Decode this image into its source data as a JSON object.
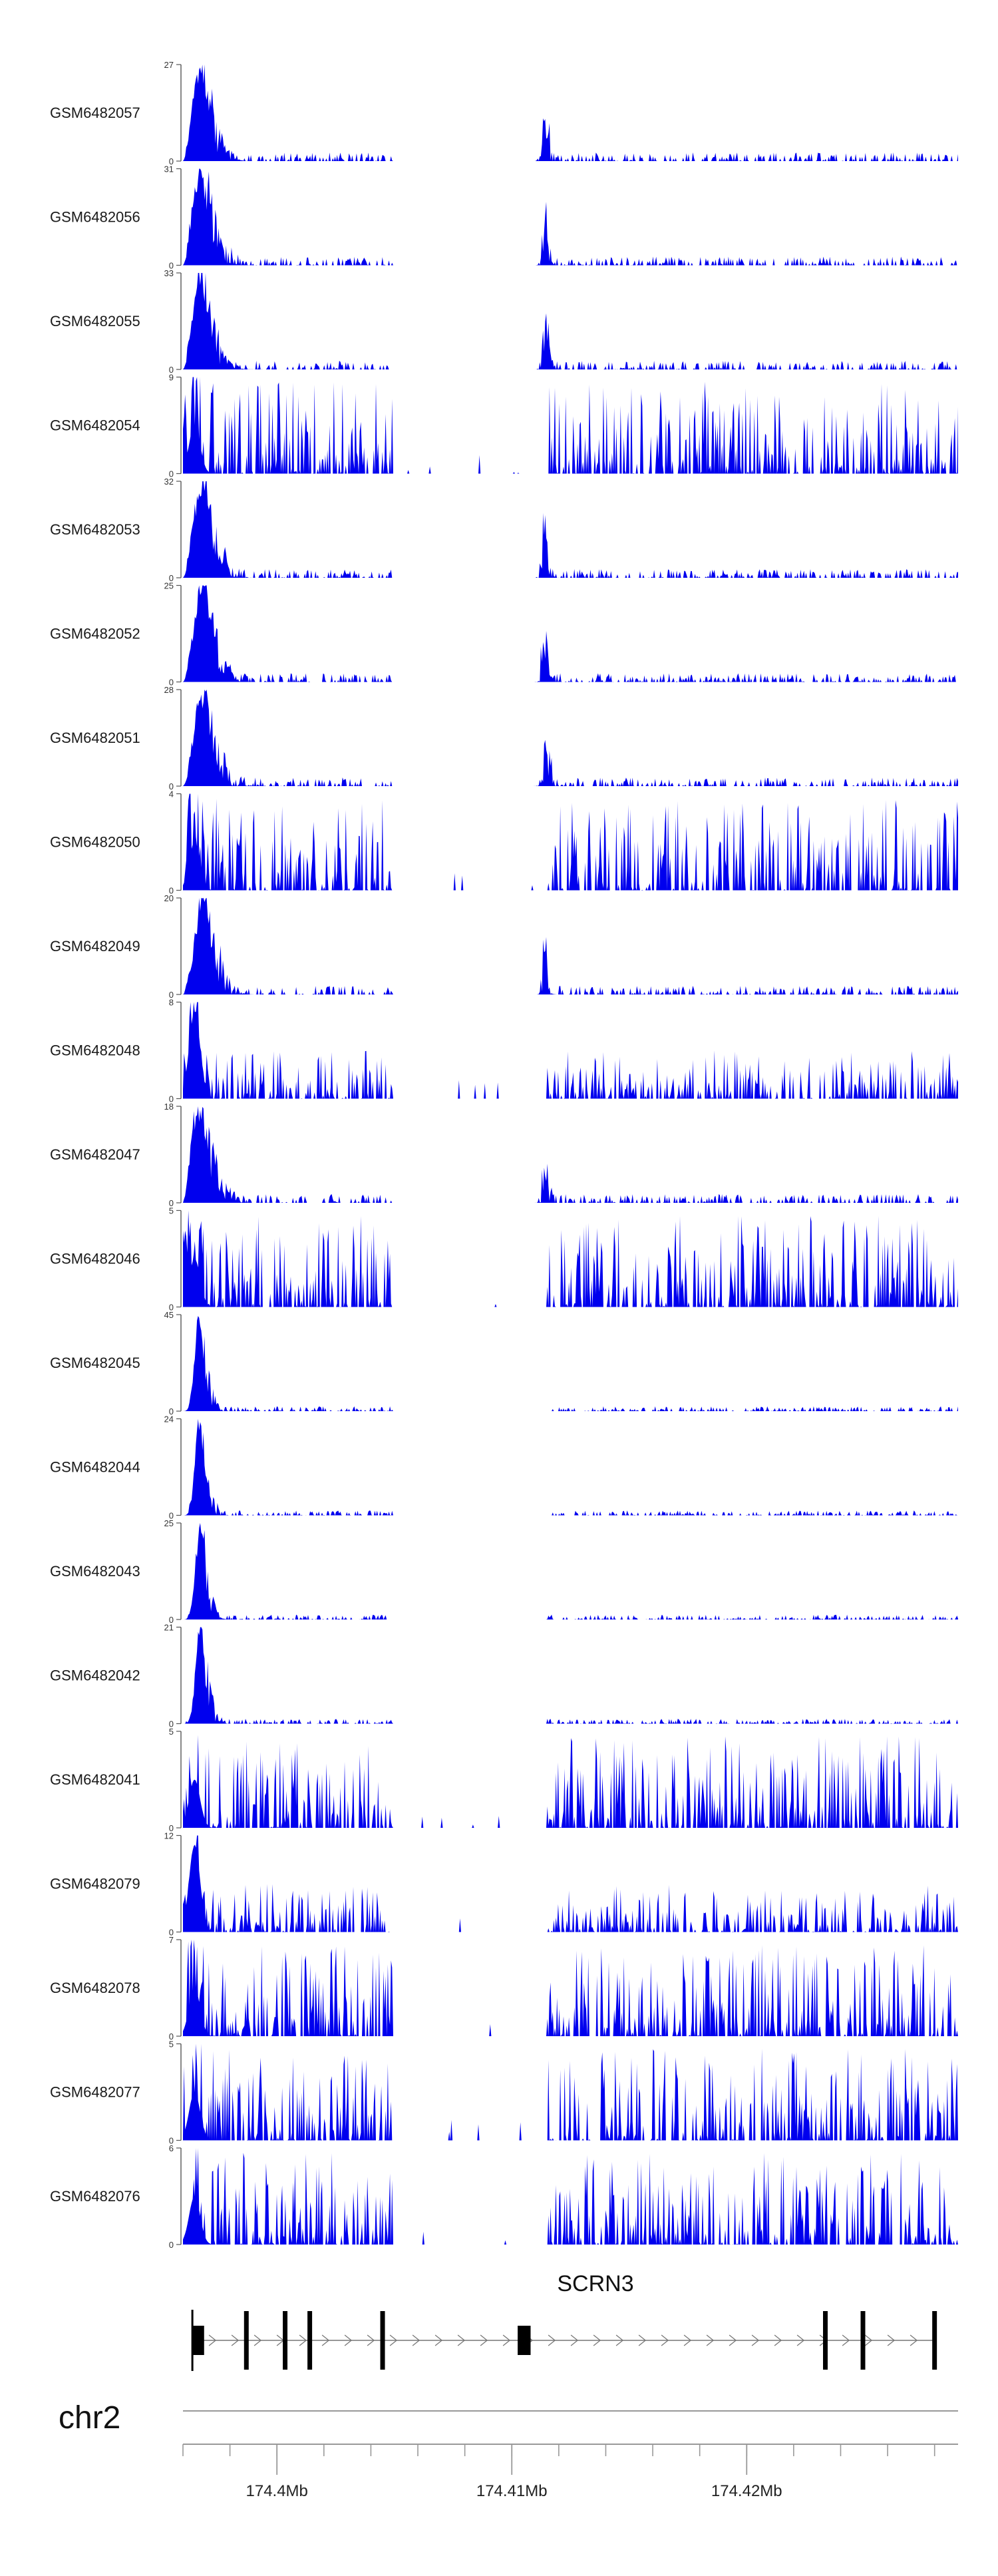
{
  "chart_data": {
    "type": "area",
    "chromosome": "chr2",
    "gene": {
      "name": "SCRN3",
      "strand": "+",
      "exons": [
        [
          174396400,
          174396900
        ],
        [
          174398600,
          174398750
        ],
        [
          174400250,
          174400400
        ],
        [
          174401300,
          174401450
        ],
        [
          174404400,
          174404550
        ],
        [
          174410250,
          174410800
        ],
        [
          174423250,
          174423400
        ],
        [
          174424850,
          174425000
        ],
        [
          174427900,
          174428050
        ]
      ]
    },
    "x_range": [
      174396000,
      174429000
    ],
    "x_ticks": [
      {
        "pos": 174400000,
        "label": "174.4Mb"
      },
      {
        "pos": 174410000,
        "label": "174.41Mb"
      },
      {
        "pos": 174420000,
        "label": "174.42Mb"
      }
    ],
    "minor_ticks": [
      174396000,
      174398000,
      174400000,
      174402000,
      174404000,
      174406000,
      174408000,
      174410000,
      174412000,
      174414000,
      174416000,
      174418000,
      174420000,
      174422000,
      174424000,
      174426000,
      174428000
    ],
    "tracks": [
      {
        "name": "GSM6482057",
        "ymax": 27,
        "profile": "promoter"
      },
      {
        "name": "GSM6482056",
        "ymax": 31,
        "profile": "promoter"
      },
      {
        "name": "GSM6482055",
        "ymax": 33,
        "profile": "promoter"
      },
      {
        "name": "GSM6482054",
        "ymax": 9,
        "profile": "noisy"
      },
      {
        "name": "GSM6482053",
        "ymax": 32,
        "profile": "promoter"
      },
      {
        "name": "GSM6482052",
        "ymax": 25,
        "profile": "promoter"
      },
      {
        "name": "GSM6482051",
        "ymax": 28,
        "profile": "promoter"
      },
      {
        "name": "GSM6482050",
        "ymax": 4,
        "profile": "noisy"
      },
      {
        "name": "GSM6482049",
        "ymax": 20,
        "profile": "promoter"
      },
      {
        "name": "GSM6482048",
        "ymax": 8,
        "profile": "medium"
      },
      {
        "name": "GSM6482047",
        "ymax": 18,
        "profile": "promoter"
      },
      {
        "name": "GSM6482046",
        "ymax": 5,
        "profile": "noisy"
      },
      {
        "name": "GSM6482045",
        "ymax": 45,
        "profile": "sharp"
      },
      {
        "name": "GSM6482044",
        "ymax": 24,
        "profile": "sharp"
      },
      {
        "name": "GSM6482043",
        "ymax": 25,
        "profile": "sharp"
      },
      {
        "name": "GSM6482042",
        "ymax": 21,
        "profile": "sharp"
      },
      {
        "name": "GSM6482041",
        "ymax": 5,
        "profile": "noisy"
      },
      {
        "name": "GSM6482079",
        "ymax": 12,
        "profile": "medium"
      },
      {
        "name": "GSM6482078",
        "ymax": 7,
        "profile": "noisy"
      },
      {
        "name": "GSM6482077",
        "ymax": 5,
        "profile": "noisy"
      },
      {
        "name": "GSM6482076",
        "ymax": 6,
        "profile": "noisy"
      }
    ],
    "ymin_label": "0",
    "fill_color": "#0000ee",
    "axis_color": "#555555",
    "gene_color": "#000000",
    "gene_line_color": "#777777",
    "chrom_line_color": "#999999"
  }
}
